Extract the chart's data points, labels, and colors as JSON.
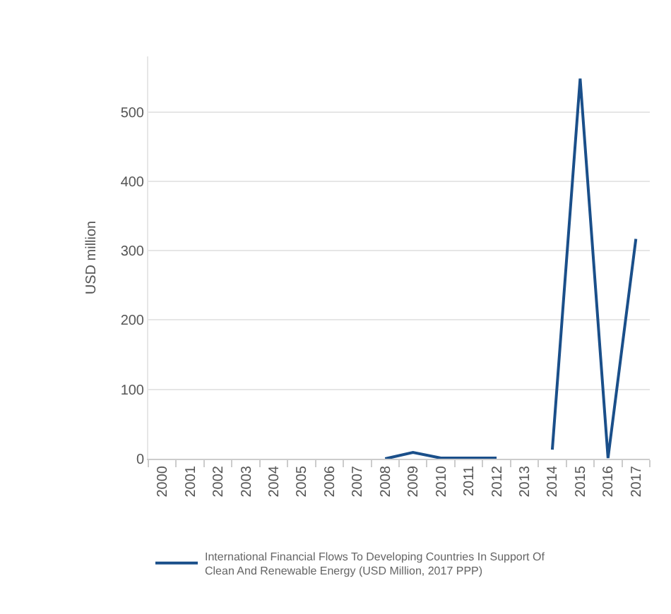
{
  "chart_data": {
    "type": "line",
    "ylabel": "USD million",
    "categories": [
      "2000",
      "2001",
      "2002",
      "2003",
      "2004",
      "2005",
      "2006",
      "2007",
      "2008",
      "2009",
      "2010",
      "2011",
      "2012",
      "2013",
      "2014",
      "2015",
      "2016",
      "2017"
    ],
    "series": [
      {
        "name": "International Financial Flows To Developing Countries In Support Of Clean And Renewable Energy (USD Million, 2017 PPP)",
        "color": "#1a4f8a",
        "values": [
          null,
          null,
          null,
          null,
          null,
          null,
          null,
          null,
          0,
          9,
          1,
          1,
          1,
          null,
          13,
          548,
          1,
          317
        ]
      }
    ],
    "ylim": [
      0,
      580
    ],
    "yticks": [
      0,
      100,
      200,
      300,
      400,
      500
    ],
    "grid": "y",
    "legend": "bottom",
    "marker": "none",
    "line_style": "solid"
  }
}
